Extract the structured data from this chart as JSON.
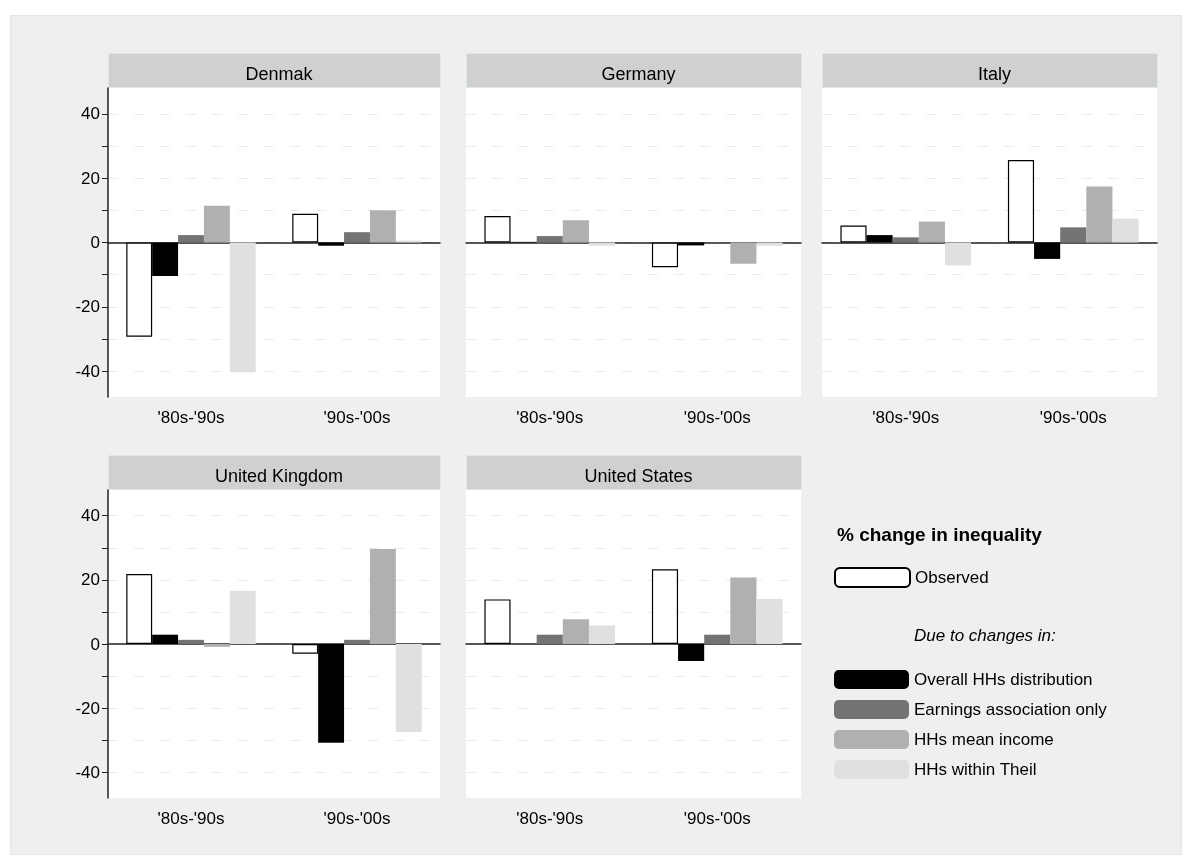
{
  "chart_data": [
    {
      "type": "bar",
      "title": "Denmak",
      "categories": [
        "'80s-'90s",
        "'90s-'00s"
      ],
      "ylim": [
        -48,
        48
      ],
      "yticks": [
        -40,
        {
          "value": -30,
          "label": null
        },
        -20,
        {
          "value": -10,
          "label": null
        },
        0,
        {
          "value": 10,
          "label": null
        },
        20,
        {
          "value": 30,
          "label": null
        },
        40
      ],
      "grid": "y",
      "series": [
        {
          "color": "#ffffff",
          "values": [
            -29.3,
            8.9
          ]
        },
        {
          "color": "#000000",
          "values": [
            -10.4,
            -1.0
          ]
        },
        {
          "color": "#737373",
          "values": [
            2.3,
            3.2
          ]
        },
        {
          "color": "#b0b0b0",
          "values": [
            11.4,
            10.0
          ]
        },
        {
          "color": "#e0e0e0",
          "values": [
            -40.3,
            0.6
          ]
        }
      ]
    },
    {
      "type": "bar",
      "title": "Germany",
      "categories": [
        "'80s-'90s",
        "'90s-'00s"
      ],
      "ylim": [
        -48,
        48
      ],
      "yticks": [
        -40,
        {
          "value": -30,
          "label": null
        },
        -20,
        {
          "value": -10,
          "label": null
        },
        0,
        {
          "value": 10,
          "label": null
        },
        20,
        {
          "value": 30,
          "label": null
        },
        40
      ],
      "grid": "y",
      "tick_labels": "x",
      "series": [
        {
          "color": "#ffffff",
          "values": [
            8.2,
            -7.7
          ]
        },
        {
          "color": "#000000",
          "values": [
            0.2,
            -0.9
          ]
        },
        {
          "color": "#737373",
          "values": [
            2.0,
            0
          ]
        },
        {
          "color": "#b0b0b0",
          "values": [
            6.9,
            -6.6
          ]
        },
        {
          "color": "#e0e0e0",
          "values": [
            -1.0,
            -1.0
          ]
        }
      ]
    },
    {
      "type": "bar",
      "title": "Italy",
      "categories": [
        "'80s-'90s",
        "'90s-'00s"
      ],
      "ylim": [
        -48,
        48
      ],
      "yticks": [
        -40,
        {
          "value": -30,
          "label": null
        },
        -20,
        {
          "value": -10,
          "label": null
        },
        0,
        {
          "value": 10,
          "label": null
        },
        20,
        {
          "value": 30,
          "label": null
        },
        40
      ],
      "grid": "y",
      "tick_labels": "x",
      "series": [
        {
          "color": "#ffffff",
          "values": [
            5.3,
            25.6
          ]
        },
        {
          "color": "#000000",
          "values": [
            2.3,
            -5.1
          ]
        },
        {
          "color": "#737373",
          "values": [
            1.6,
            4.7
          ]
        },
        {
          "color": "#b0b0b0",
          "values": [
            6.5,
            17.4
          ]
        },
        {
          "color": "#e0e0e0",
          "values": [
            -7.1,
            7.4
          ]
        }
      ]
    },
    {
      "type": "bar",
      "title": "United Kingdom",
      "categories": [
        "'80s-'90s",
        "'90s-'00s"
      ],
      "ylim": [
        -48,
        48
      ],
      "yticks": [
        -40,
        {
          "value": -30,
          "label": null
        },
        -20,
        {
          "value": -10,
          "label": null
        },
        0,
        {
          "value": 10,
          "label": null
        },
        20,
        {
          "value": 30,
          "label": null
        },
        40
      ],
      "grid": "y",
      "series": [
        {
          "color": "#ffffff",
          "values": [
            21.8,
            -3.0
          ]
        },
        {
          "color": "#000000",
          "values": [
            2.9,
            -30.8
          ]
        },
        {
          "color": "#737373",
          "values": [
            1.3,
            1.3
          ]
        },
        {
          "color": "#b0b0b0",
          "values": [
            -0.9,
            29.6
          ]
        },
        {
          "color": "#e0e0e0",
          "values": [
            16.6,
            -27.4
          ]
        }
      ]
    },
    {
      "type": "bar",
      "title": "United States",
      "categories": [
        "'80s-'90s",
        "'90s-'00s"
      ],
      "ylim": [
        -48,
        48
      ],
      "yticks": [
        -40,
        {
          "value": -30,
          "label": null
        },
        -20,
        {
          "value": -10,
          "label": null
        },
        0,
        {
          "value": 10,
          "label": null
        },
        20,
        {
          "value": 30,
          "label": null
        },
        40
      ],
      "grid": "y",
      "tick_labels": "x",
      "legend": "right",
      "legend_title": "% change in inequality",
      "annotations": [
        "Due to changes in:"
      ],
      "series": [
        {
          "name": "Observed",
          "color": "#ffffff",
          "values": [
            13.9,
            23.3
          ]
        },
        {
          "name": "Overall HHs distribution",
          "color": "#000000",
          "values": [
            0,
            -5.3
          ]
        },
        {
          "name": "Earnings association only",
          "color": "#737373",
          "values": [
            2.9,
            2.9
          ]
        },
        {
          "name": "HHs mean income",
          "color": "#b0b0b0",
          "values": [
            7.7,
            20.7
          ]
        },
        {
          "name": "HHs within Theil",
          "color": "#e0e0e0",
          "values": [
            5.8,
            14.0
          ]
        }
      ]
    }
  ]
}
